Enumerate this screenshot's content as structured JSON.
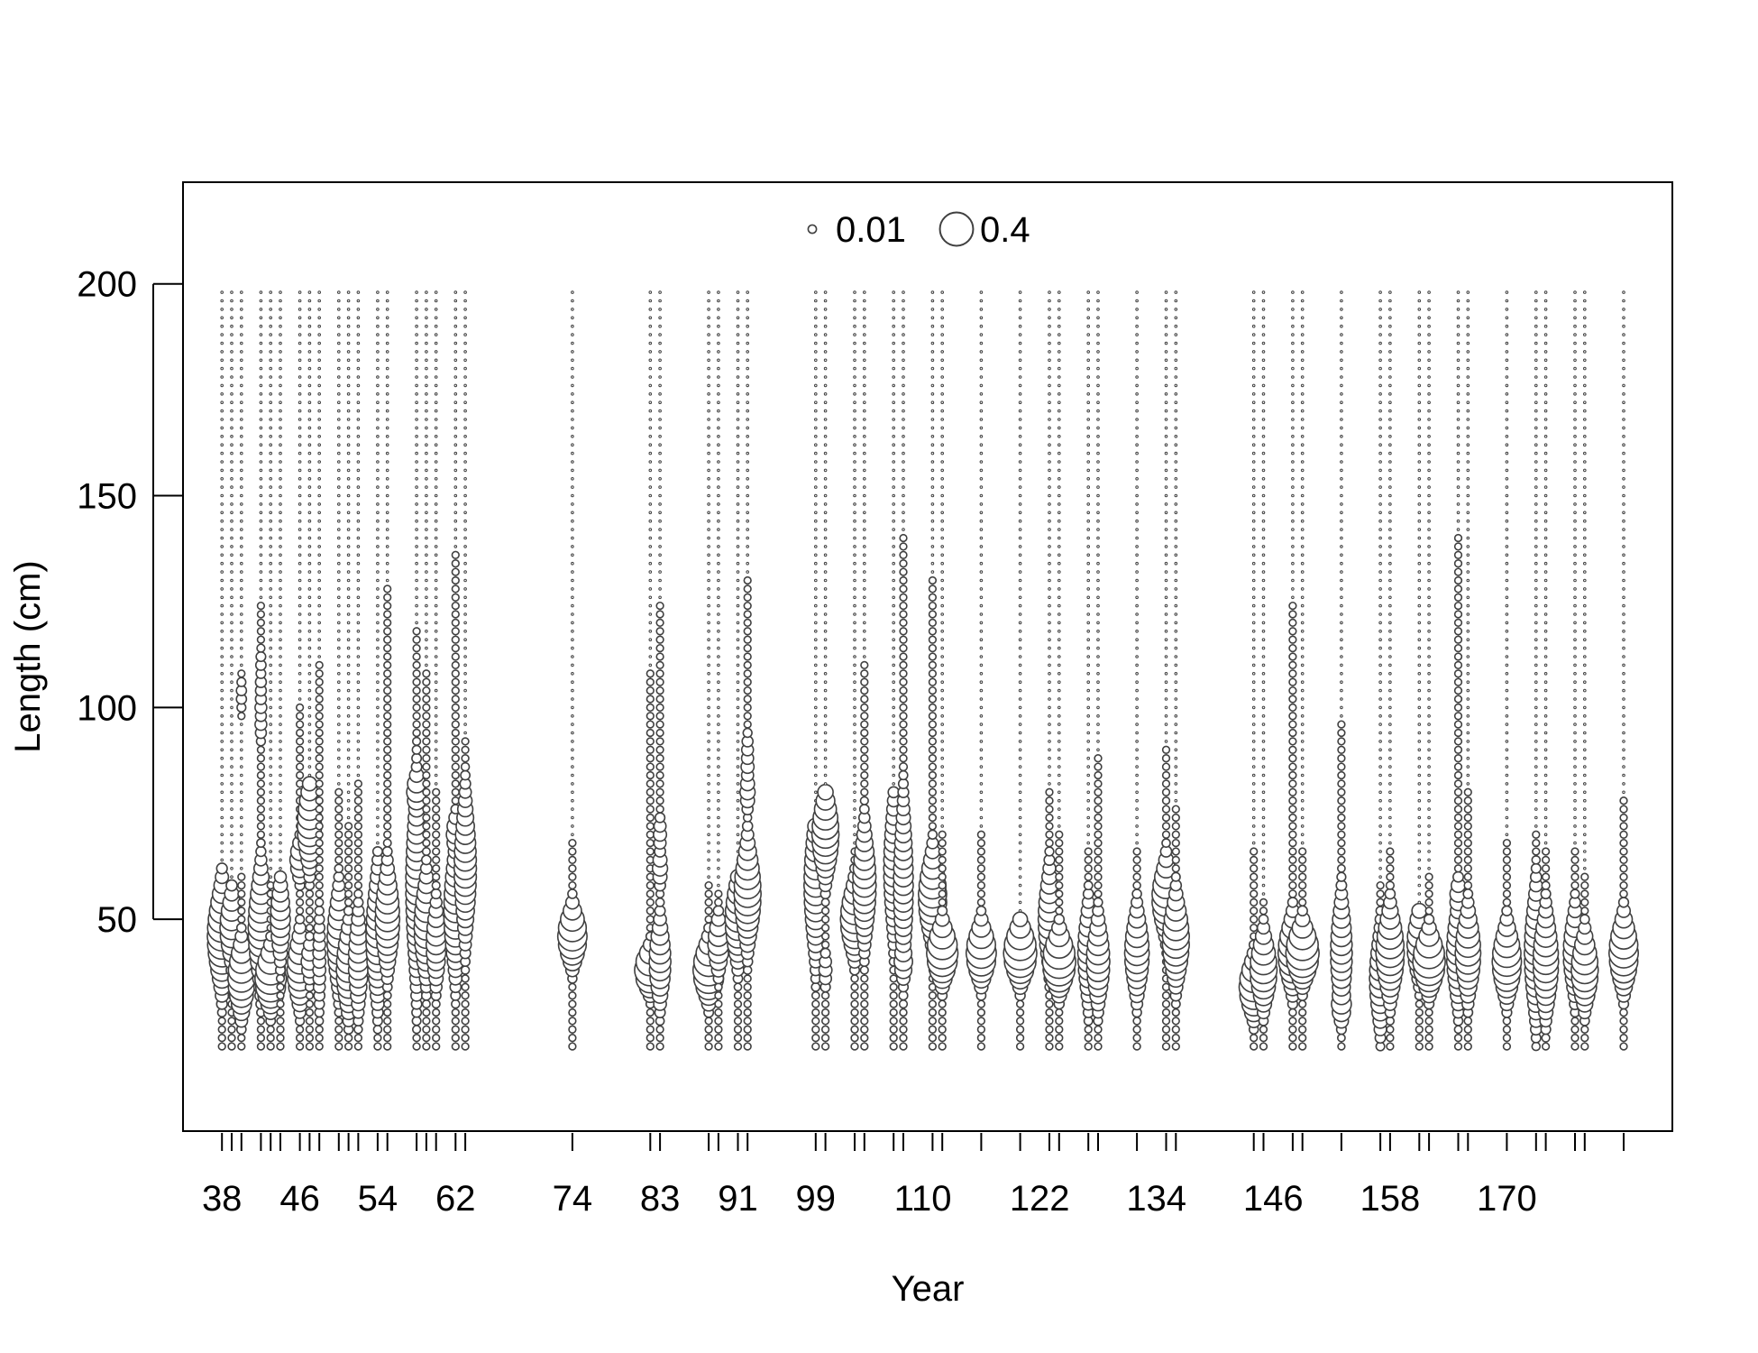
{
  "chart_data": {
    "type": "scatter",
    "subtype": "bubble",
    "title": "",
    "xlabel": "Year",
    "ylabel": "Length (cm)",
    "ylim": [
      0,
      224
    ],
    "y_ticks": [
      50,
      100,
      150,
      200
    ],
    "x_tick_labels": [
      "38",
      "46",
      "54",
      "62",
      "74",
      "83",
      "91",
      "99",
      "110",
      "122",
      "134",
      "146",
      "158",
      "170"
    ],
    "length_bins": {
      "min": 20,
      "max": 198,
      "step": 2
    },
    "legend": {
      "placement": "top-center",
      "entries": [
        {
          "label": "0.01",
          "value": 0.01
        },
        {
          "label": "0.4",
          "value": 0.4
        }
      ]
    },
    "colors": {
      "circle_stroke": "#404040",
      "circle_fill": "#ffffff",
      "frame": "#000000"
    },
    "series": [
      {
        "x": 38,
        "mode": 46,
        "sd": 7,
        "peak": 0.3,
        "tail": 62
      },
      {
        "x": 39,
        "mode": 48,
        "sd": 5,
        "peak": 0.18,
        "tail": 58
      },
      {
        "x": 40,
        "mode": 36,
        "sd": 5,
        "peak": 0.25,
        "tail": 60,
        "extra": [
          [
            103,
            0.02
          ]
        ]
      },
      {
        "x": 42,
        "mode": 48,
        "sd": 8,
        "peak": 0.22,
        "tail": 124,
        "extra": [
          [
            100,
            0.03
          ],
          [
            96,
            0.03
          ],
          [
            105,
            0.025
          ],
          [
            110,
            0.02
          ]
        ]
      },
      {
        "x": 43,
        "mode": 36,
        "sd": 4,
        "peak": 0.35,
        "tail": 58
      },
      {
        "x": 44,
        "mode": 50,
        "sd": 6,
        "peak": 0.12,
        "tail": 60
      },
      {
        "x": 46,
        "mode": 38,
        "sd": 5,
        "peak": 0.22,
        "tail": 100,
        "extra": [
          [
            64,
            0.12
          ]
        ]
      },
      {
        "x": 47,
        "mode": 72,
        "sd": 6,
        "peak": 0.2,
        "tail": 82,
        "extra": [
          [
            40,
            0.08
          ]
        ]
      },
      {
        "x": 48,
        "mode": 40,
        "sd": 8,
        "peak": 0.04,
        "tail": 110
      },
      {
        "x": 50,
        "mode": 45,
        "sd": 7,
        "peak": 0.18,
        "tail": 80
      },
      {
        "x": 51,
        "mode": 38,
        "sd": 6,
        "peak": 0.2,
        "tail": 72
      },
      {
        "x": 52,
        "mode": 40,
        "sd": 7,
        "peak": 0.12,
        "tail": 82
      },
      {
        "x": 54,
        "mode": 46,
        "sd": 9,
        "peak": 0.18,
        "tail": 66
      },
      {
        "x": 55,
        "mode": 50,
        "sd": 7,
        "peak": 0.2,
        "tail": 128
      },
      {
        "x": 58,
        "mode": 58,
        "sd": 14,
        "peak": 0.15,
        "tail": 118,
        "extra": [
          [
            80,
            0.12
          ]
        ]
      },
      {
        "x": 59,
        "mode": 48,
        "sd": 7,
        "peak": 0.2,
        "tail": 108
      },
      {
        "x": 60,
        "mode": 44,
        "sd": 6,
        "peak": 0.12,
        "tail": 80
      },
      {
        "x": 62,
        "mode": 52,
        "sd": 9,
        "peak": 0.18,
        "tail": 136,
        "extra": [
          [
            70,
            0.1
          ]
        ]
      },
      {
        "x": 63,
        "mode": 62,
        "sd": 10,
        "peak": 0.16,
        "tail": 92
      },
      {
        "x": 74,
        "mode": 46,
        "sd": 4,
        "peak": 0.3,
        "tail": 68
      },
      {
        "x": 82,
        "mode": 38,
        "sd": 3,
        "peak": 0.35,
        "tail": 108
      },
      {
        "x": 83,
        "mode": 40,
        "sd": 6,
        "peak": 0.15,
        "tail": 124,
        "extra": [
          [
            62,
            0.06
          ],
          [
            70,
            0.04
          ]
        ]
      },
      {
        "x": 88,
        "mode": 38,
        "sd": 4,
        "peak": 0.35,
        "tail": 58
      },
      {
        "x": 89,
        "mode": 44,
        "sd": 4,
        "peak": 0.14,
        "tail": 56
      },
      {
        "x": 91,
        "mode": 50,
        "sd": 6,
        "peak": 0.22,
        "tail": 60
      },
      {
        "x": 92,
        "mode": 56,
        "sd": 7,
        "peak": 0.25,
        "tail": 130,
        "extra": [
          [
            80,
            0.06
          ],
          [
            86,
            0.04
          ],
          [
            90,
            0.03
          ]
        ]
      },
      {
        "x": 99,
        "mode": 58,
        "sd": 10,
        "peak": 0.18,
        "tail": 72
      },
      {
        "x": 100,
        "mode": 70,
        "sd": 6,
        "peak": 0.25,
        "tail": 80,
        "extra": [
          [
            38,
            0.04
          ]
        ]
      },
      {
        "x": 103,
        "mode": 50,
        "sd": 5,
        "peak": 0.28,
        "tail": 66
      },
      {
        "x": 104,
        "mode": 58,
        "sd": 8,
        "peak": 0.18,
        "tail": 110
      },
      {
        "x": 107,
        "mode": 62,
        "sd": 10,
        "peak": 0.12,
        "tail": 80
      },
      {
        "x": 108,
        "mode": 58,
        "sd": 12,
        "peak": 0.12,
        "tail": 140,
        "extra": [
          [
            40,
            0.1
          ]
        ]
      },
      {
        "x": 111,
        "mode": 55,
        "sd": 6,
        "peak": 0.28,
        "tail": 130
      },
      {
        "x": 112,
        "mode": 42,
        "sd": 4,
        "peak": 0.35,
        "tail": 70
      },
      {
        "x": 116,
        "mode": 42,
        "sd": 4,
        "peak": 0.32,
        "tail": 70
      },
      {
        "x": 120,
        "mode": 42,
        "sd": 4,
        "peak": 0.4,
        "tail": 50
      },
      {
        "x": 123,
        "mode": 50,
        "sd": 7,
        "peak": 0.16,
        "tail": 80
      },
      {
        "x": 124,
        "mode": 40,
        "sd": 4,
        "peak": 0.4,
        "tail": 70
      },
      {
        "x": 127,
        "mode": 42,
        "sd": 7,
        "peak": 0.14,
        "tail": 66
      },
      {
        "x": 128,
        "mode": 40,
        "sd": 6,
        "peak": 0.18,
        "tail": 88
      },
      {
        "x": 132,
        "mode": 42,
        "sd": 6,
        "peak": 0.2,
        "tail": 66
      },
      {
        "x": 135,
        "mode": 55,
        "sd": 5,
        "peak": 0.28,
        "tail": 90
      },
      {
        "x": 136,
        "mode": 45,
        "sd": 6,
        "peak": 0.25,
        "tail": 76
      },
      {
        "x": 144,
        "mode": 34,
        "sd": 4,
        "peak": 0.3,
        "tail": 66
      },
      {
        "x": 145,
        "mode": 38,
        "sd": 5,
        "peak": 0.25,
        "tail": 54
      },
      {
        "x": 148,
        "mode": 42,
        "sd": 5,
        "peak": 0.3,
        "tail": 124
      },
      {
        "x": 149,
        "mode": 42,
        "sd": 4,
        "peak": 0.4,
        "tail": 66
      },
      {
        "x": 153,
        "mode": 42,
        "sd": 8,
        "peak": 0.15,
        "tail": 96,
        "extra": [
          [
            30,
            0.12
          ]
        ]
      },
      {
        "x": 157,
        "mode": 36,
        "sd": 7,
        "peak": 0.15,
        "tail": 58
      },
      {
        "x": 158,
        "mode": 42,
        "sd": 6,
        "peak": 0.28,
        "tail": 66
      },
      {
        "x": 161,
        "mode": 44,
        "sd": 5,
        "peak": 0.2,
        "tail": 52
      },
      {
        "x": 162,
        "mode": 40,
        "sd": 4,
        "peak": 0.38,
        "tail": 60
      },
      {
        "x": 165,
        "mode": 42,
        "sd": 7,
        "peak": 0.18,
        "tail": 140,
        "extra": [
          [
            55,
            0.08
          ]
        ]
      },
      {
        "x": 166,
        "mode": 42,
        "sd": 6,
        "peak": 0.22,
        "tail": 80
      },
      {
        "x": 170,
        "mode": 40,
        "sd": 5,
        "peak": 0.3,
        "tail": 68
      },
      {
        "x": 173,
        "mode": 42,
        "sd": 9,
        "peak": 0.18,
        "tail": 70
      },
      {
        "x": 174,
        "mode": 40,
        "sd": 7,
        "peak": 0.22,
        "tail": 66
      },
      {
        "x": 177,
        "mode": 42,
        "sd": 6,
        "peak": 0.18,
        "tail": 66
      },
      {
        "x": 178,
        "mode": 38,
        "sd": 5,
        "peak": 0.25,
        "tail": 60
      },
      {
        "x": 182,
        "mode": 42,
        "sd": 5,
        "peak": 0.3,
        "tail": 78
      }
    ]
  }
}
